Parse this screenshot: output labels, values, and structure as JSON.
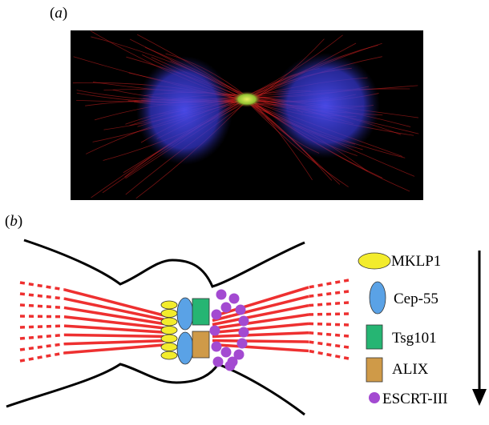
{
  "panel_a": {
    "open": "(",
    "letter": "a",
    "close": ")"
  },
  "panel_b": {
    "open": "(",
    "letter": "b",
    "close": ")"
  },
  "legend": [
    {
      "label": "MKLP1",
      "shape": "ellipse-icon",
      "color": "#f3ec2c"
    },
    {
      "label": "Cep-55",
      "shape": "oval-icon",
      "color": "#5aa2e6"
    },
    {
      "label": "Tsg101",
      "shape": "square-icon",
      "color": "#26b573"
    },
    {
      "label": "ALIX",
      "shape": "square-icon",
      "color": "#cf9a48"
    },
    {
      "label": "ESCRT-III",
      "shape": "dot-icon",
      "color": "#a34ad1"
    }
  ],
  "colors": {
    "microtubule": "#ee3030",
    "outline": "#000000",
    "micrograph_bg": "#000000",
    "dna": "#3a3ce0",
    "midbody": "#c8e040"
  }
}
